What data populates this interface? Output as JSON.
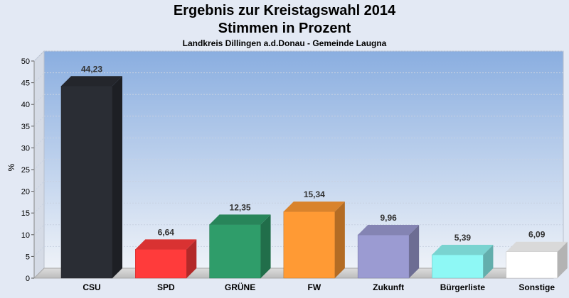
{
  "chart_data": {
    "type": "bar",
    "title": "Ergebnis zur Kreistagswahl 2014",
    "subtitle": "Stimmen in Prozent",
    "caption": "Landkreis Dillingen a.d.Donau - Gemeinde Laugna",
    "ylabel": "%",
    "ylim": [
      0,
      50
    ],
    "yticks": [
      0,
      5,
      10,
      15,
      20,
      25,
      30,
      35,
      40,
      45,
      50
    ],
    "categories": [
      "CSU",
      "SPD",
      "GRÜNE",
      "FW",
      "Zukunft",
      "Bürgerliste",
      "Sonstige"
    ],
    "values": [
      44.23,
      6.64,
      12.35,
      15.34,
      9.96,
      5.39,
      6.09
    ],
    "value_labels": [
      "44,23",
      "6,64",
      "12,35",
      "15,34",
      "9,96",
      "5,39",
      "6,09"
    ],
    "colors": [
      "#2a2d34",
      "#ff3b3b",
      "#2f9d6a",
      "#ff9a34",
      "#9b9bd2",
      "#8ef8f5",
      "#ffffff"
    ],
    "grid": true
  }
}
